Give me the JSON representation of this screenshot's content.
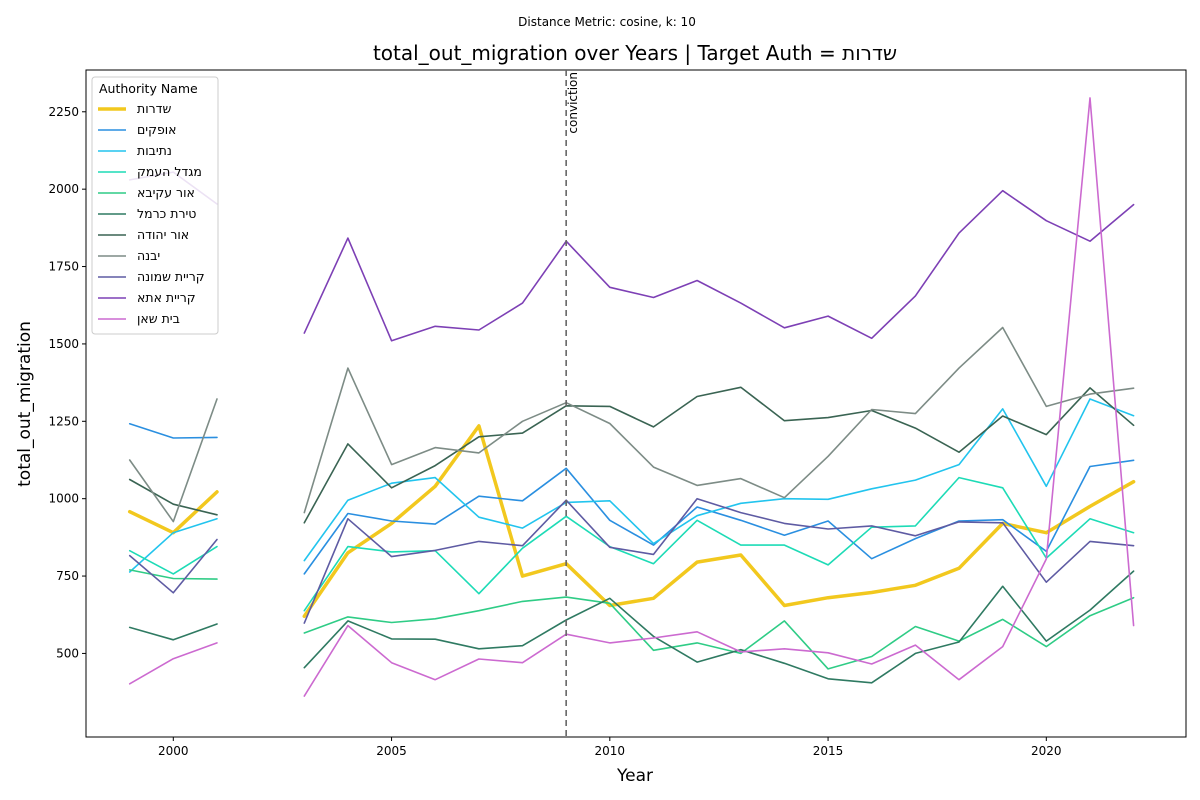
{
  "chart_data": {
    "type": "line",
    "suptitle": "Distance Metric: cosine, k: 10",
    "title": "total_out_migration over Years | Target Auth = שדרות",
    "xlabel": "Year",
    "ylabel": "total_out_migration",
    "xlim": [
      1998,
      2023.2
    ],
    "ylim": [
      230,
      2385
    ],
    "xticks": [
      2000,
      2005,
      2010,
      2015,
      2020
    ],
    "yticks": [
      500,
      750,
      1000,
      1250,
      1500,
      1750,
      2000,
      2250
    ],
    "grid": false,
    "legend": {
      "title": "Authority Name",
      "placement": "top-left"
    },
    "x": [
      1999,
      2000,
      2001,
      2002,
      2003,
      2004,
      2005,
      2006,
      2007,
      2008,
      2009,
      2010,
      2011,
      2012,
      2013,
      2014,
      2015,
      2016,
      2017,
      2018,
      2019,
      2020,
      2021,
      2022
    ],
    "annotation": {
      "x": 2009,
      "text": "conviction"
    },
    "series": [
      {
        "name": "שדרות",
        "color": "#f2c81e",
        "width": 3.5,
        "values": [
          958,
          890,
          1022,
          null,
          620,
          825,
          920,
          1040,
          1235,
          750,
          790,
          655,
          678,
          795,
          818,
          655,
          680,
          697,
          720,
          775,
          920,
          890,
          975,
          1055
        ]
      },
      {
        "name": "אופקים",
        "color": "#2a8fe0",
        "width": 1.6,
        "values": [
          1242,
          1196,
          1198,
          null,
          757,
          952,
          928,
          918,
          1008,
          993,
          1098,
          930,
          850,
          973,
          930,
          882,
          928,
          806,
          871,
          928,
          932,
          830,
          1104,
          1124
        ]
      },
      {
        "name": "נתיבות",
        "color": "#22c4ee",
        "width": 1.6,
        "values": [
          763,
          890,
          935,
          null,
          800,
          995,
          1050,
          1068,
          940,
          905,
          988,
          993,
          855,
          945,
          985,
          1000,
          998,
          1032,
          1060,
          1110,
          1290,
          1040,
          1322,
          1268
        ]
      },
      {
        "name": "מגדל העמק",
        "color": "#1ddbb6",
        "width": 1.6,
        "values": [
          832,
          757,
          845,
          null,
          638,
          845,
          828,
          832,
          693,
          840,
          943,
          845,
          790,
          930,
          850,
          850,
          786,
          908,
          912,
          1068,
          1035,
          808,
          935,
          890
        ]
      },
      {
        "name": "אור עקיבא",
        "color": "#2fcc86",
        "width": 1.6,
        "values": [
          770,
          742,
          740,
          null,
          566,
          618,
          600,
          612,
          638,
          668,
          682,
          662,
          510,
          534,
          500,
          605,
          450,
          490,
          587,
          540,
          610,
          522,
          622,
          680
        ]
      },
      {
        "name": "טירת כרמל",
        "color": "#2f7a62",
        "width": 1.6,
        "values": [
          584,
          544,
          595,
          null,
          454,
          605,
          547,
          546,
          515,
          525,
          608,
          678,
          555,
          472,
          512,
          468,
          418,
          405,
          500,
          537,
          717,
          540,
          640,
          766
        ]
      },
      {
        "name": "אור יהודה",
        "color": "#3a6453",
        "width": 1.6,
        "values": [
          1062,
          982,
          948,
          null,
          922,
          1177,
          1035,
          1107,
          1200,
          1212,
          1300,
          1298,
          1232,
          1330,
          1360,
          1252,
          1262,
          1285,
          1228,
          1150,
          1267,
          1207,
          1358,
          1237
        ]
      },
      {
        "name": "יבנה",
        "color": "#7d8c86",
        "width": 1.6,
        "values": [
          1125,
          926,
          1322,
          null,
          955,
          1422,
          1110,
          1165,
          1148,
          1250,
          1310,
          1243,
          1102,
          1043,
          1065,
          1003,
          1137,
          1288,
          1275,
          1422,
          1553,
          1298,
          1338,
          1357
        ]
      },
      {
        "name": "קריית שמונה",
        "color": "#5e5ba3",
        "width": 1.6,
        "values": [
          816,
          696,
          868,
          null,
          598,
          935,
          813,
          833,
          862,
          848,
          995,
          843,
          820,
          1000,
          955,
          920,
          902,
          912,
          880,
          925,
          922,
          730,
          862,
          848
        ]
      },
      {
        "name": "קריית אתא",
        "color": "#7d40b5",
        "width": 1.6,
        "values": [
          2030,
          2055,
          1952,
          null,
          1535,
          1842,
          1510,
          1557,
          1545,
          1632,
          1832,
          1683,
          1650,
          1705,
          1632,
          1552,
          1590,
          1518,
          1655,
          1858,
          1995,
          1898,
          1832,
          1950
        ]
      },
      {
        "name": "בית שאן",
        "color": "#cc6ad0",
        "width": 1.6,
        "values": [
          402,
          483,
          534,
          null,
          362,
          590,
          470,
          415,
          482,
          470,
          562,
          534,
          550,
          570,
          505,
          515,
          502,
          466,
          527,
          415,
          522,
          805,
          2295,
          590
        ]
      }
    ]
  }
}
